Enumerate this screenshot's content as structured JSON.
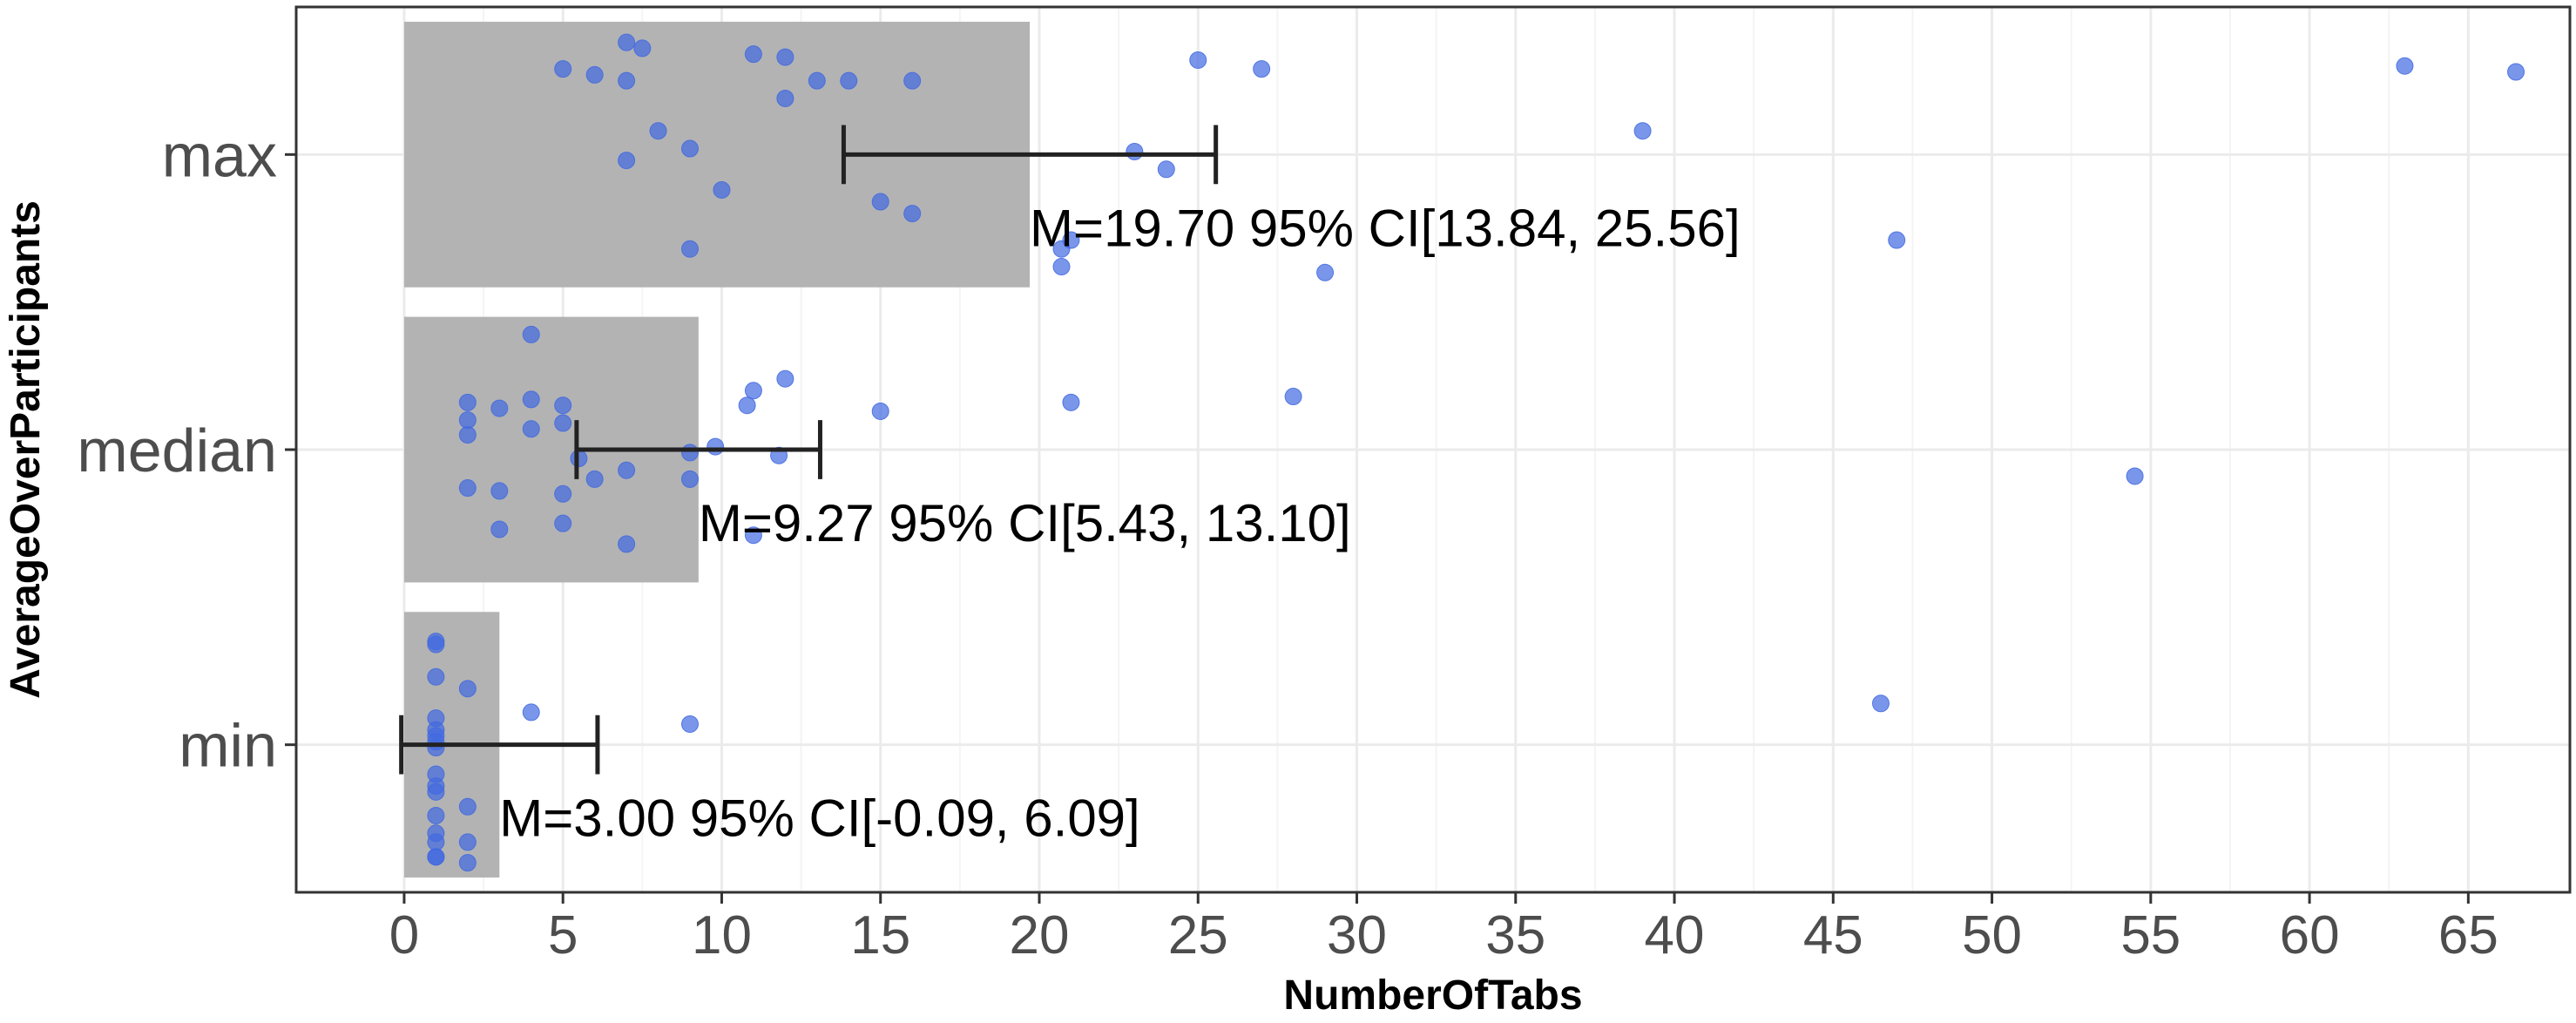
{
  "chart_data": {
    "type": "bar",
    "orientation": "horizontal",
    "xlabel": "NumberOfTabs",
    "ylabel": "AverageOverParticipants",
    "xlim": [
      -3.4,
      68.2
    ],
    "x_ticks": [
      0,
      5,
      10,
      15,
      20,
      25,
      30,
      35,
      40,
      45,
      50,
      55,
      60,
      65
    ],
    "categories": [
      "max",
      "median",
      "min"
    ],
    "grid": true,
    "colors": {
      "bar": "#b3b3b3",
      "point": "#4169e1",
      "errorbar": "#222222",
      "grid": "#ebebeb",
      "panel_border": "#333333"
    },
    "bars": [
      {
        "category": "max",
        "mean": 19.7,
        "ci_low": 13.84,
        "ci_high": 25.56,
        "label": "M=19.70 95% CI[13.84, 25.56]"
      },
      {
        "category": "median",
        "mean": 9.27,
        "ci_low": 5.43,
        "ci_high": 13.1,
        "label": "M=9.27 95% CI[5.43, 13.10]"
      },
      {
        "category": "min",
        "mean": 3.0,
        "ci_low": -0.09,
        "ci_high": 6.09,
        "label": "M=3.00 95% CI[-0.09, 6.09]"
      }
    ],
    "points": {
      "max": [
        [
          5.0,
          0.29
        ],
        [
          6.0,
          0.27
        ],
        [
          7.0,
          0.38
        ],
        [
          7.0,
          0.25
        ],
        [
          7.5,
          0.36
        ],
        [
          11.0,
          0.34
        ],
        [
          12.0,
          0.33
        ],
        [
          13.0,
          0.25
        ],
        [
          12.0,
          0.19
        ],
        [
          14.0,
          0.25
        ],
        [
          16.0,
          0.25
        ],
        [
          25.0,
          0.32
        ],
        [
          27.0,
          0.29
        ],
        [
          8.0,
          0.08
        ],
        [
          9.0,
          0.02
        ],
        [
          7.0,
          -0.02
        ],
        [
          10.0,
          -0.12
        ],
        [
          15.0,
          -0.16
        ],
        [
          16.0,
          -0.2
        ],
        [
          9.0,
          -0.32
        ],
        [
          20.7,
          -0.32
        ],
        [
          21.0,
          -0.29
        ],
        [
          20.7,
          -0.38
        ],
        [
          23.0,
          0.01
        ],
        [
          24.0,
          -0.05
        ],
        [
          29.0,
          -0.4
        ],
        [
          39.0,
          0.08
        ],
        [
          47.0,
          -0.29
        ],
        [
          63.0,
          0.3
        ],
        [
          66.5,
          0.28
        ]
      ],
      "median": [
        [
          4.0,
          0.39
        ],
        [
          2.0,
          0.16
        ],
        [
          4.0,
          0.17
        ],
        [
          5.0,
          0.15
        ],
        [
          3.0,
          0.14
        ],
        [
          2.0,
          0.1
        ],
        [
          5.0,
          0.09
        ],
        [
          2.0,
          0.05
        ],
        [
          4.0,
          0.07
        ],
        [
          11.0,
          0.2
        ],
        [
          12.0,
          0.24
        ],
        [
          10.8,
          0.15
        ],
        [
          15.0,
          0.13
        ],
        [
          21.0,
          0.16
        ],
        [
          28.0,
          0.18
        ],
        [
          9.8,
          0.01
        ],
        [
          9.0,
          -0.01
        ],
        [
          11.8,
          -0.02
        ],
        [
          5.5,
          -0.03
        ],
        [
          7.0,
          -0.07
        ],
        [
          6.0,
          -0.1
        ],
        [
          9.0,
          -0.1
        ],
        [
          2.0,
          -0.13
        ],
        [
          3.0,
          -0.14
        ],
        [
          5.0,
          -0.15
        ],
        [
          3.0,
          -0.27
        ],
        [
          5.0,
          -0.25
        ],
        [
          7.0,
          -0.32
        ],
        [
          11.0,
          -0.29
        ],
        [
          54.5,
          -0.09
        ]
      ],
      "min": [
        [
          1.0,
          0.35
        ],
        [
          1.0,
          0.34
        ],
        [
          1.0,
          0.23
        ],
        [
          2.0,
          0.19
        ],
        [
          4.0,
          0.11
        ],
        [
          9.0,
          0.07
        ],
        [
          1.0,
          0.09
        ],
        [
          1.0,
          0.05
        ],
        [
          1.0,
          0.03
        ],
        [
          1.0,
          0.01
        ],
        [
          1.0,
          -0.01
        ],
        [
          1.0,
          -0.1
        ],
        [
          1.0,
          -0.14
        ],
        [
          1.0,
          -0.16
        ],
        [
          2.0,
          -0.21
        ],
        [
          1.0,
          -0.24
        ],
        [
          1.0,
          -0.3
        ],
        [
          1.0,
          -0.33
        ],
        [
          2.0,
          -0.33
        ],
        [
          1.0,
          -0.38
        ],
        [
          2.0,
          -0.4
        ],
        [
          1.0,
          -0.38
        ],
        [
          46.5,
          0.14
        ]
      ]
    }
  }
}
